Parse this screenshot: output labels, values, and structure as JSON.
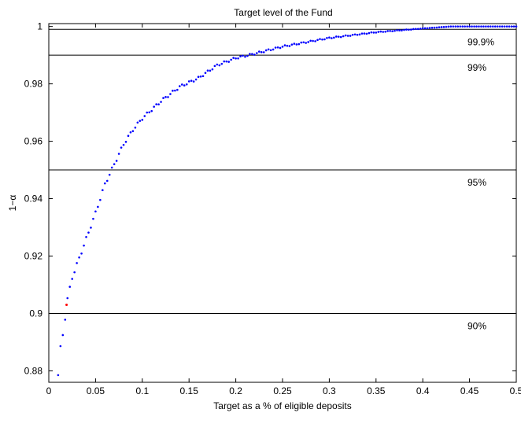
{
  "chart_data": {
    "type": "scatter",
    "title": "Target level of the Fund",
    "xlabel": "Target as a % of eligible deposits",
    "ylabel": "1−α",
    "xlim": [
      0,
      0.5
    ],
    "ylim": [
      0.876,
      1.001
    ],
    "x_ticks": [
      0,
      0.05,
      0.1,
      0.15,
      0.2,
      0.25,
      0.3,
      0.35,
      0.4,
      0.45,
      0.5
    ],
    "x_tick_labels": [
      "0",
      "0.05",
      "0.1",
      "0.15",
      "0.2",
      "0.25",
      "0.3",
      "0.35",
      "0.4",
      "0.45",
      "0.5"
    ],
    "y_ticks": [
      0.88,
      0.9,
      0.92,
      0.94,
      0.96,
      0.98,
      1
    ],
    "y_tick_labels": [
      "0.88",
      "0.9",
      "0.92",
      "0.94",
      "0.96",
      "0.98",
      "1"
    ],
    "grid": false,
    "reference_lines": [
      {
        "y": 0.999,
        "label": "99.9%"
      },
      {
        "y": 0.99,
        "label": "99%"
      },
      {
        "y": 0.95,
        "label": "95%"
      },
      {
        "y": 0.9,
        "label": "90%"
      }
    ],
    "curve_samples": [
      {
        "x": 0.01,
        "y": 0.8785
      },
      {
        "x": 0.012,
        "y": 0.887
      },
      {
        "x": 0.016,
        "y": 0.8945
      },
      {
        "x": 0.02,
        "y": 0.905
      },
      {
        "x": 0.025,
        "y": 0.9125
      },
      {
        "x": 0.03,
        "y": 0.917
      },
      {
        "x": 0.04,
        "y": 0.926
      },
      {
        "x": 0.05,
        "y": 0.935
      },
      {
        "x": 0.06,
        "y": 0.945
      },
      {
        "x": 0.07,
        "y": 0.952
      },
      {
        "x": 0.08,
        "y": 0.959
      },
      {
        "x": 0.09,
        "y": 0.964
      },
      {
        "x": 0.1,
        "y": 0.968
      },
      {
        "x": 0.12,
        "y": 0.974
      },
      {
        "x": 0.14,
        "y": 0.979
      },
      {
        "x": 0.16,
        "y": 0.982
      },
      {
        "x": 0.18,
        "y": 0.9865
      },
      {
        "x": 0.2,
        "y": 0.989
      },
      {
        "x": 0.22,
        "y": 0.9905
      },
      {
        "x": 0.25,
        "y": 0.993
      },
      {
        "x": 0.3,
        "y": 0.996
      },
      {
        "x": 0.35,
        "y": 0.998
      },
      {
        "x": 0.4,
        "y": 0.9993
      },
      {
        "x": 0.43,
        "y": 1.0
      },
      {
        "x": 0.5,
        "y": 1.0
      }
    ],
    "highlight_point": {
      "x": 0.019,
      "y": 0.903,
      "color": "#ff0000"
    },
    "series_color": "#0000ff",
    "point_step": 0.0025
  }
}
